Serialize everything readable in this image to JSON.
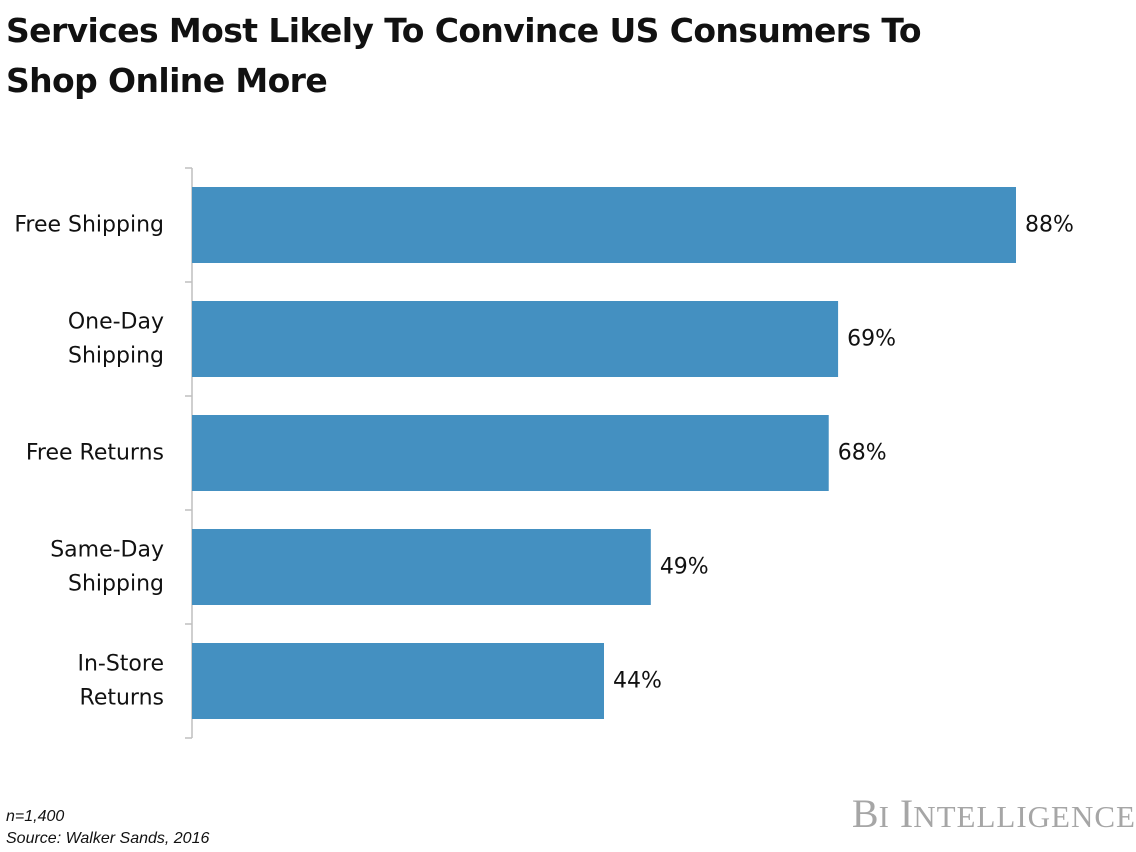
{
  "title_lines": [
    "Services Most Likely To Convince US Consumers To",
    "Shop Online More"
  ],
  "notes": {
    "sample": "n=1,400",
    "source": "Source: Walker Sands, 2016"
  },
  "logo_text": "BI INTELLIGENCE",
  "colors": {
    "bar": "#4490c1",
    "axis": "#bfbfbf",
    "text": "#111111",
    "logo": "#a6a6a6"
  },
  "chart_data": {
    "type": "bar",
    "orientation": "horizontal",
    "title": "Services Most Likely To Convince US Consumers To Shop Online More",
    "xlabel": "",
    "ylabel": "",
    "xlim": [
      0,
      88
    ],
    "grid": false,
    "legend": "none",
    "value_suffix": "%",
    "categories": [
      [
        "Free Shipping"
      ],
      [
        "One-Day",
        "Shipping"
      ],
      [
        "Free Returns"
      ],
      [
        "Same-Day",
        "Shipping"
      ],
      [
        "In-Store",
        "Returns"
      ]
    ],
    "values": [
      88,
      69,
      68,
      49,
      44
    ],
    "data_labels": [
      "88%",
      "69%",
      "68%",
      "49%",
      "44%"
    ]
  }
}
